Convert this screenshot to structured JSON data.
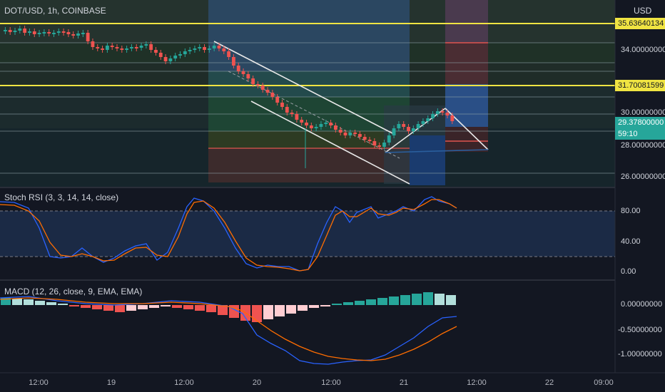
{
  "header": {
    "symbol_title": "DOT/USD, 1h, COINBASE",
    "currency": "USD"
  },
  "price_axis": {
    "ticks": [
      "34.00000000",
      "30.00000000",
      "28.00000000",
      "26.00000000"
    ],
    "resistance_high": "35.63640134",
    "resistance_low": "31.70081599",
    "last_price": "29.37800000",
    "countdown": "59:10",
    "colors": {
      "level_line": "#f0e442",
      "last_price": "#26a69a"
    }
  },
  "indicators": {
    "stoch_rsi": {
      "label": "Stoch RSI (3, 3, 14, 14, close)",
      "ticks": [
        "80.00",
        "40.00",
        "0.00"
      ]
    },
    "macd": {
      "label": "MACD (12, 26, close, 9, EMA, EMA)",
      "ticks": [
        "0.00000000",
        "-0.50000000",
        "-1.00000000"
      ]
    }
  },
  "time_axis": {
    "labels": [
      "12:00",
      "19",
      "12:00",
      "20",
      "12:00",
      "21",
      "12:00",
      "22",
      "09:00"
    ]
  }
}
